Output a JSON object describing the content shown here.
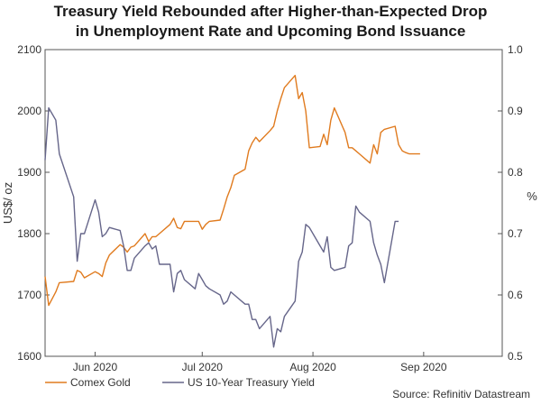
{
  "chart_data": {
    "type": "line",
    "title": "Treasury Yield Rebounded after Higher-than-Expected Drop",
    "subtitle": "in Unemployment Rate and Upcoming Bond Issuance",
    "ylabel_left": "US$/ oz",
    "ylabel_right": "%",
    "ylim_left": [
      1600,
      2100
    ],
    "ylim_right": [
      0.5,
      1.0
    ],
    "yticks_left": [
      "1600",
      "1700",
      "1800",
      "1900",
      "2000",
      "2100"
    ],
    "yticks_right": [
      "0.5",
      "0.6",
      "0.7",
      "0.8",
      "0.9",
      "1.0"
    ],
    "xlim": [
      "2020-05-18",
      "2020-09-23"
    ],
    "xticks": [
      {
        "date": "2020-06-01",
        "label": "Jun 2020"
      },
      {
        "date": "2020-07-01",
        "label": "Jul 2020"
      },
      {
        "date": "2020-08-01",
        "label": "Aug 2020"
      },
      {
        "date": "2020-09-01",
        "label": "Sep 2020"
      }
    ],
    "series": [
      {
        "name": "Comex Gold",
        "axis": "left",
        "color": "#e07b1f",
        "points": [
          [
            "2020-05-18",
            1730
          ],
          [
            "2020-05-19",
            1683
          ],
          [
            "2020-05-21",
            1705
          ],
          [
            "2020-05-22",
            1720
          ],
          [
            "2020-05-26",
            1722
          ],
          [
            "2020-05-27",
            1740
          ],
          [
            "2020-05-28",
            1737
          ],
          [
            "2020-05-29",
            1728
          ],
          [
            "2020-06-01",
            1738
          ],
          [
            "2020-06-02",
            1735
          ],
          [
            "2020-06-03",
            1730
          ],
          [
            "2020-06-04",
            1752
          ],
          [
            "2020-06-05",
            1765
          ],
          [
            "2020-06-08",
            1782
          ],
          [
            "2020-06-09",
            1778
          ],
          [
            "2020-06-10",
            1770
          ],
          [
            "2020-06-11",
            1778
          ],
          [
            "2020-06-12",
            1780
          ],
          [
            "2020-06-15",
            1800
          ],
          [
            "2020-06-16",
            1787
          ],
          [
            "2020-06-17",
            1795
          ],
          [
            "2020-06-18",
            1795
          ],
          [
            "2020-06-19",
            1800
          ],
          [
            "2020-06-22",
            1815
          ],
          [
            "2020-06-23",
            1825
          ],
          [
            "2020-06-24",
            1810
          ],
          [
            "2020-06-25",
            1808
          ],
          [
            "2020-06-26",
            1820
          ],
          [
            "2020-06-29",
            1820
          ],
          [
            "2020-06-30",
            1820
          ],
          [
            "2020-07-01",
            1807
          ],
          [
            "2020-07-02",
            1815
          ],
          [
            "2020-07-03",
            1820
          ],
          [
            "2020-07-06",
            1822
          ],
          [
            "2020-07-07",
            1840
          ],
          [
            "2020-07-08",
            1860
          ],
          [
            "2020-07-09",
            1875
          ],
          [
            "2020-07-10",
            1895
          ],
          [
            "2020-07-13",
            1905
          ],
          [
            "2020-07-14",
            1935
          ],
          [
            "2020-07-15",
            1948
          ],
          [
            "2020-07-16",
            1957
          ],
          [
            "2020-07-17",
            1950
          ],
          [
            "2020-07-20",
            1968
          ],
          [
            "2020-07-21",
            1975
          ],
          [
            "2020-07-22",
            2000
          ],
          [
            "2020-07-23",
            2020
          ],
          [
            "2020-07-24",
            2038
          ],
          [
            "2020-07-27",
            2058
          ],
          [
            "2020-07-28",
            2020
          ],
          [
            "2020-07-29",
            2030
          ],
          [
            "2020-07-30",
            2000
          ],
          [
            "2020-07-31",
            1940
          ],
          [
            "2020-08-03",
            1942
          ],
          [
            "2020-08-04",
            1962
          ],
          [
            "2020-08-05",
            1945
          ],
          [
            "2020-08-06",
            1985
          ],
          [
            "2020-08-07",
            2005
          ],
          [
            "2020-08-10",
            1965
          ],
          [
            "2020-08-11",
            1940
          ],
          [
            "2020-08-12",
            1940
          ],
          [
            "2020-08-13",
            1935
          ],
          [
            "2020-08-14",
            1930
          ],
          [
            "2020-08-17",
            1915
          ],
          [
            "2020-08-18",
            1945
          ],
          [
            "2020-08-19",
            1930
          ],
          [
            "2020-08-20",
            1965
          ],
          [
            "2020-08-21",
            1970
          ],
          [
            "2020-08-24",
            1975
          ],
          [
            "2020-08-25",
            1945
          ],
          [
            "2020-08-26",
            1935
          ],
          [
            "2020-08-27",
            1932
          ],
          [
            "2020-08-28",
            1930
          ],
          [
            "2020-08-31",
            1930
          ]
        ]
      },
      {
        "name": "US 10-Year Treasury Yield",
        "axis": "right",
        "color": "#66668a",
        "points": [
          [
            "2020-05-18",
            0.82
          ],
          [
            "2020-05-19",
            0.905
          ],
          [
            "2020-05-21",
            0.885
          ],
          [
            "2020-05-22",
            0.83
          ],
          [
            "2020-05-26",
            0.76
          ],
          [
            "2020-05-27",
            0.655
          ],
          [
            "2020-05-28",
            0.7
          ],
          [
            "2020-05-29",
            0.7
          ],
          [
            "2020-06-01",
            0.755
          ],
          [
            "2020-06-02",
            0.735
          ],
          [
            "2020-06-03",
            0.695
          ],
          [
            "2020-06-04",
            0.7
          ],
          [
            "2020-06-05",
            0.71
          ],
          [
            "2020-06-08",
            0.705
          ],
          [
            "2020-06-09",
            0.68
          ],
          [
            "2020-06-10",
            0.64
          ],
          [
            "2020-06-11",
            0.64
          ],
          [
            "2020-06-12",
            0.66
          ],
          [
            "2020-06-15",
            0.68
          ],
          [
            "2020-06-16",
            0.685
          ],
          [
            "2020-06-17",
            0.675
          ],
          [
            "2020-06-18",
            0.68
          ],
          [
            "2020-06-19",
            0.65
          ],
          [
            "2020-06-22",
            0.65
          ],
          [
            "2020-06-23",
            0.605
          ],
          [
            "2020-06-24",
            0.635
          ],
          [
            "2020-06-25",
            0.64
          ],
          [
            "2020-06-26",
            0.625
          ],
          [
            "2020-06-29",
            0.61
          ],
          [
            "2020-06-30",
            0.635
          ],
          [
            "2020-07-01",
            0.625
          ],
          [
            "2020-07-02",
            0.615
          ],
          [
            "2020-07-03",
            0.61
          ],
          [
            "2020-07-06",
            0.6
          ],
          [
            "2020-07-07",
            0.585
          ],
          [
            "2020-07-08",
            0.59
          ],
          [
            "2020-07-09",
            0.605
          ],
          [
            "2020-07-10",
            0.6
          ],
          [
            "2020-07-13",
            0.585
          ],
          [
            "2020-07-14",
            0.585
          ],
          [
            "2020-07-15",
            0.56
          ],
          [
            "2020-07-16",
            0.56
          ],
          [
            "2020-07-17",
            0.545
          ],
          [
            "2020-07-20",
            0.565
          ],
          [
            "2020-07-21",
            0.515
          ],
          [
            "2020-07-22",
            0.545
          ],
          [
            "2020-07-23",
            0.54
          ],
          [
            "2020-07-24",
            0.565
          ],
          [
            "2020-07-27",
            0.59
          ],
          [
            "2020-07-28",
            0.655
          ],
          [
            "2020-07-29",
            0.67
          ],
          [
            "2020-07-30",
            0.715
          ],
          [
            "2020-07-31",
            0.71
          ],
          [
            "2020-08-03",
            0.68
          ],
          [
            "2020-08-04",
            0.67
          ],
          [
            "2020-08-05",
            0.695
          ],
          [
            "2020-08-06",
            0.645
          ],
          [
            "2020-08-07",
            0.64
          ],
          [
            "2020-08-10",
            0.645
          ],
          [
            "2020-08-11",
            0.68
          ],
          [
            "2020-08-12",
            0.685
          ],
          [
            "2020-08-13",
            0.745
          ],
          [
            "2020-08-14",
            0.735
          ],
          [
            "2020-08-17",
            0.72
          ],
          [
            "2020-08-18",
            0.685
          ],
          [
            "2020-08-19",
            0.665
          ],
          [
            "2020-08-20",
            0.65
          ],
          [
            "2020-08-21",
            0.62
          ],
          [
            "2020-08-24",
            0.72
          ],
          [
            "2020-08-25",
            0.72
          ]
        ]
      }
    ],
    "legend_position": "bottom-left",
    "grid": false,
    "source": "Source: Refinitiv Datastream"
  }
}
